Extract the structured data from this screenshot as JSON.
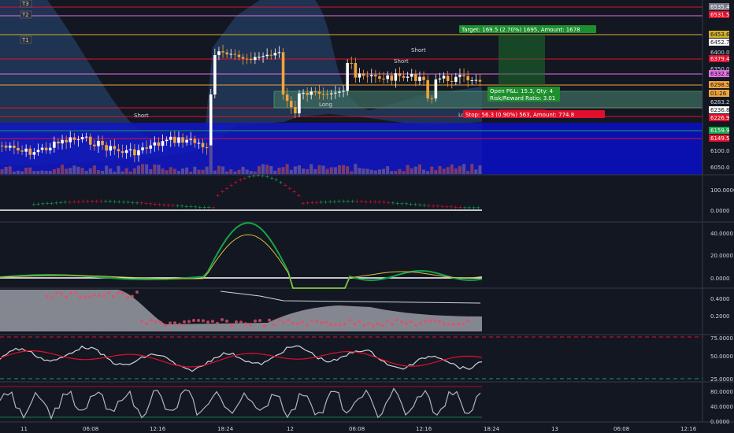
{
  "symbol_markers": [
    "T3",
    "T2",
    "T1"
  ],
  "main_axis": {
    "ticks": [
      "6400.0",
      "6350.0",
      "6283.2",
      "6100.0",
      "6050.0"
    ],
    "tags": [
      {
        "text": "6535.4",
        "bg": "#787b86",
        "fg": "#ffffff"
      },
      {
        "text": "6531.5",
        "bg": "#e0102c",
        "fg": "#ffffff"
      },
      {
        "text": "6453.6",
        "bg": "#d4b12a",
        "fg": "#131722"
      },
      {
        "text": "6452.7",
        "bg": "#ffffff",
        "fg": "#131722"
      },
      {
        "text": "6379.4",
        "bg": "#e0102c",
        "fg": "#ffffff"
      },
      {
        "text": "6332.8",
        "bg": "#e070e0",
        "fg": "#131722"
      },
      {
        "text": "6298.5",
        "bg": "#f2a23c",
        "fg": "#131722"
      },
      {
        "text": "01:26",
        "bg": "#f2a23c",
        "fg": "#131722"
      },
      {
        "text": "6236.8",
        "bg": "#ffffff",
        "fg": "#131722"
      },
      {
        "text": "6226.9",
        "bg": "#e0102c",
        "fg": "#ffffff"
      },
      {
        "text": "6159.9",
        "bg": "#16a34a",
        "fg": "#ffffff"
      },
      {
        "text": "6149.5",
        "bg": "#e0102c",
        "fg": "#ffffff"
      }
    ]
  },
  "trade_labels": {
    "target": "Target: 169.5 (2.70%) 1695, Amount: 1678",
    "open_pl": "Open P&L: 15.3, Qty: 4",
    "risk_reward": "Risk/Reward Ratio: 3.01",
    "stop": "Stop: 56.3 (0.90%) 563, Amount: 774.8"
  },
  "chart_labels": {
    "short1": "Short",
    "short2": "Short",
    "short3": "Short",
    "long1": "Long",
    "long2": "Lo"
  },
  "pane_axes": {
    "p1": [
      "100.0000",
      "0.0000"
    ],
    "p2": [
      "40.0000",
      "20.0000",
      "0.0000"
    ],
    "p3": [
      "0.4000",
      "0.2000"
    ],
    "p4": [
      "75.0000",
      "50.0000",
      "25.0000"
    ],
    "p5": [
      "80.0000",
      "40.0000",
      "0.0000"
    ]
  },
  "time_axis": [
    "11",
    "06:08",
    "12:16",
    "18:24",
    "12",
    "06:08",
    "12:16",
    "18:24",
    "13",
    "06:08",
    "12:16"
  ],
  "colors": {
    "background": "#131722",
    "up": "#ffffff",
    "down": "#f2a23c",
    "blue_zone": "#1016c8",
    "target_green": "#1e8f2e",
    "stop_red": "#e0102c"
  }
}
